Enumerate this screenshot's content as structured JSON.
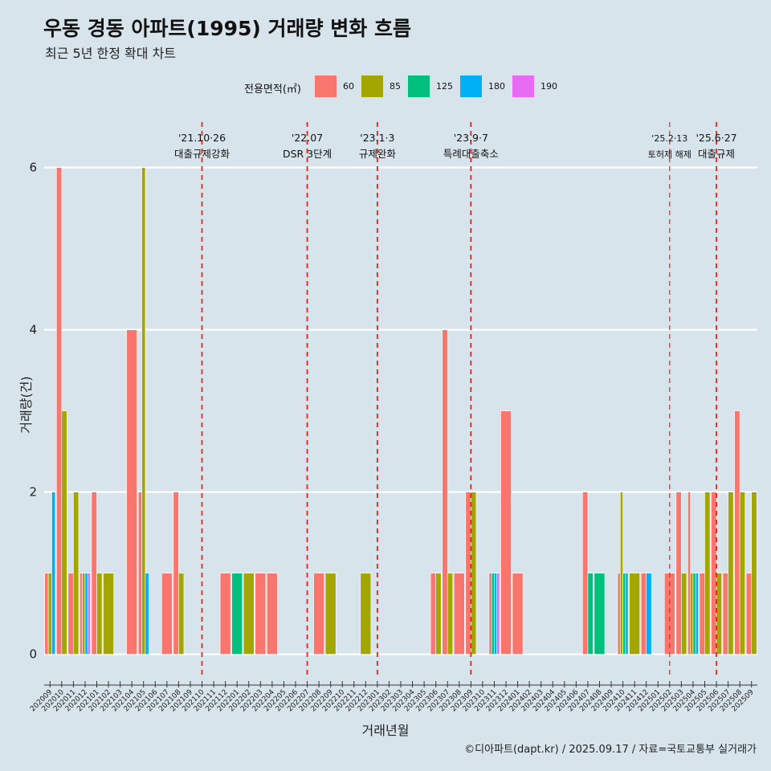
{
  "title": "우동 경동 아파트(1995) 거래량 변화 흐름",
  "subtitle": "최근 5년 한정 확대 차트",
  "caption": "©디아파트(dapt.kr) / 2025.09.17 / 자료=국토교통부 실거래가",
  "legend": {
    "title": "전용면적(㎡)",
    "items": [
      {
        "label": "60",
        "color": "#f8766d"
      },
      {
        "label": "85",
        "color": "#a3a500"
      },
      {
        "label": "125",
        "color": "#00bf7d"
      },
      {
        "label": "180",
        "color": "#00b0f6"
      },
      {
        "label": "190",
        "color": "#e76bf3"
      }
    ]
  },
  "chart_data": {
    "type": "bar",
    "xlabel": "거래년월",
    "ylabel": "거래량(건)",
    "ylim": [
      -0.3,
      6.6
    ],
    "yticks": [
      0,
      2,
      4,
      6
    ],
    "categories": [
      "202009",
      "202010",
      "202011",
      "202012",
      "202101",
      "202102",
      "202103",
      "202104",
      "202105",
      "202106",
      "202107",
      "202108",
      "202109",
      "202110",
      "202111",
      "202112",
      "202201",
      "202202",
      "202203",
      "202204",
      "202205",
      "202206",
      "202207",
      "202208",
      "202209",
      "202210",
      "202211",
      "202212",
      "202301",
      "202302",
      "202303",
      "202304",
      "202305",
      "202306",
      "202307",
      "202308",
      "202309",
      "202310",
      "202311",
      "202312",
      "202401",
      "202402",
      "202403",
      "202404",
      "202405",
      "202406",
      "202407",
      "202408",
      "202409",
      "202410",
      "202411",
      "202412",
      "202501",
      "202502",
      "202503",
      "202504",
      "202505",
      "202506",
      "202507",
      "202508",
      "202509"
    ],
    "series": [
      {
        "name": "60",
        "color": "#f8766d",
        "values": [
          1,
          6,
          1,
          1,
          2,
          0,
          0,
          4,
          2,
          0,
          1,
          2,
          0,
          0,
          0,
          1,
          0,
          0,
          1,
          1,
          0,
          0,
          0,
          1,
          0,
          0,
          0,
          0,
          0,
          0,
          0,
          0,
          0,
          1,
          4,
          1,
          2,
          0,
          1,
          3,
          1,
          0,
          0,
          0,
          0,
          0,
          2,
          0,
          0,
          1,
          0,
          1,
          0,
          1,
          2,
          2,
          1,
          2,
          1,
          3,
          1
        ]
      },
      {
        "name": "85",
        "color": "#a3a500",
        "values": [
          1,
          3,
          2,
          1,
          1,
          1,
          0,
          0,
          6,
          0,
          0,
          1,
          0,
          0,
          0,
          0,
          0,
          1,
          0,
          0,
          0,
          0,
          0,
          0,
          1,
          0,
          0,
          1,
          0,
          0,
          0,
          0,
          0,
          1,
          1,
          0,
          2,
          0,
          0,
          0,
          0,
          0,
          0,
          0,
          0,
          0,
          0,
          0,
          0,
          2,
          1,
          0,
          0,
          0,
          1,
          1,
          2,
          1,
          2,
          2,
          2
        ]
      },
      {
        "name": "125",
        "color": "#00bf7d",
        "values": [
          0,
          0,
          0,
          0,
          0,
          0,
          0,
          0,
          0,
          0,
          0,
          0,
          0,
          0,
          0,
          0,
          1,
          0,
          0,
          0,
          0,
          0,
          0,
          0,
          0,
          0,
          0,
          0,
          0,
          0,
          0,
          0,
          0,
          0,
          0,
          0,
          0,
          0,
          1,
          0,
          0,
          0,
          0,
          0,
          0,
          0,
          1,
          1,
          0,
          1,
          0,
          0,
          0,
          0,
          0,
          1,
          0,
          0,
          0,
          0,
          0
        ]
      },
      {
        "name": "180",
        "color": "#00b0f6",
        "values": [
          2,
          0,
          0,
          1,
          0,
          0,
          0,
          0,
          1,
          0,
          0,
          0,
          0,
          0,
          0,
          0,
          0,
          0,
          0,
          0,
          0,
          0,
          0,
          0,
          0,
          0,
          0,
          0,
          0,
          0,
          0,
          0,
          0,
          0,
          0,
          0,
          0,
          0,
          1,
          0,
          0,
          0,
          0,
          0,
          0,
          0,
          0,
          0,
          0,
          1,
          0,
          1,
          0,
          0,
          0,
          1,
          0,
          0,
          0,
          0,
          0
        ]
      },
      {
        "name": "190",
        "color": "#e76bf3",
        "values": [
          0,
          0,
          0,
          1,
          0,
          0,
          0,
          0,
          0,
          0,
          0,
          0,
          0,
          0,
          0,
          0,
          0,
          0,
          0,
          0,
          0,
          0,
          0,
          0,
          0,
          0,
          0,
          0,
          0,
          0,
          0,
          0,
          0,
          0,
          0,
          0,
          0,
          0,
          1,
          0,
          0,
          0,
          0,
          0,
          0,
          0,
          0,
          0,
          0,
          0,
          0,
          0,
          0,
          0,
          0,
          0,
          0,
          0,
          0,
          0,
          0
        ]
      }
    ],
    "annotations": [
      {
        "date": "'21.10·26",
        "label": "대출규제강화",
        "at": "202110"
      },
      {
        "date": "'22.07",
        "label": "DSR 3단계",
        "at": "202207"
      },
      {
        "date": "'23.1·3",
        "label": "규제완화",
        "at": "202301"
      },
      {
        "date": "'23.9·7",
        "label": "특례대출축소",
        "at": "202309"
      },
      {
        "date": "'25.2·13",
        "label": "토허제 해제",
        "at": "202502"
      },
      {
        "date": "'25.6·27",
        "label": "대출규제",
        "at": "202506"
      }
    ]
  }
}
